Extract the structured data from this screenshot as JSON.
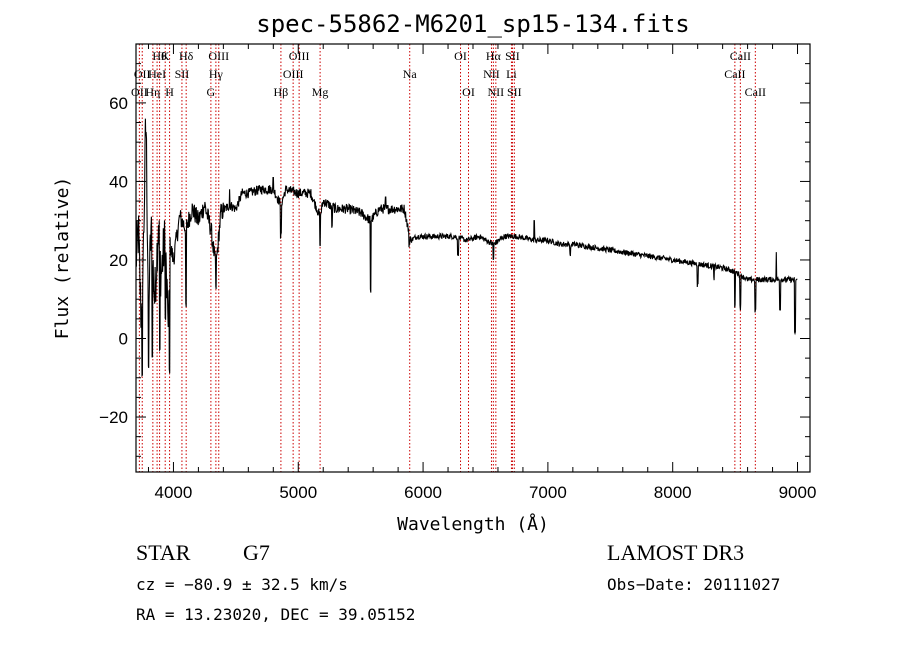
{
  "chart_data": {
    "type": "line",
    "title": "spec-55862-M6201_sp15-134.fits",
    "xlabel": "Wavelength (Å)",
    "ylabel": "Flux (relative)",
    "xlim": [
      3700,
      9100
    ],
    "ylim": [
      -34,
      75
    ],
    "xticks": [
      4000,
      5000,
      6000,
      7000,
      8000,
      9000
    ],
    "yticks": [
      -20,
      0,
      20,
      40,
      60
    ],
    "spectrum_anchors": [
      [
        3700,
        20
      ],
      [
        3720,
        27
      ],
      [
        3740,
        6
      ],
      [
        3760,
        24
      ],
      [
        3780,
        56
      ],
      [
        3800,
        8
      ],
      [
        3820,
        28
      ],
      [
        3850,
        10
      ],
      [
        3880,
        30
      ],
      [
        3900,
        16
      ],
      [
        3930,
        25
      ],
      [
        3960,
        3
      ],
      [
        3970,
        24
      ],
      [
        4000,
        20
      ],
      [
        4050,
        31
      ],
      [
        4100,
        28
      ],
      [
        4150,
        33
      ],
      [
        4200,
        30
      ],
      [
        4250,
        34
      ],
      [
        4300,
        28
      ],
      [
        4340,
        18
      ],
      [
        4380,
        32
      ],
      [
        4450,
        34
      ],
      [
        4500,
        33
      ],
      [
        4550,
        37
      ],
      [
        4600,
        37
      ],
      [
        4700,
        38
      ],
      [
        4800,
        38
      ],
      [
        4861,
        34
      ],
      [
        4900,
        38
      ],
      [
        5000,
        37
      ],
      [
        5100,
        37
      ],
      [
        5175,
        31
      ],
      [
        5200,
        35
      ],
      [
        5300,
        33
      ],
      [
        5400,
        33
      ],
      [
        5500,
        32
      ],
      [
        5580,
        30
      ],
      [
        5650,
        33
      ],
      [
        5750,
        33
      ],
      [
        5850,
        33
      ],
      [
        5900,
        25
      ],
      [
        5950,
        26
      ],
      [
        6050,
        26
      ],
      [
        6150,
        26
      ],
      [
        6250,
        26
      ],
      [
        6350,
        25
      ],
      [
        6450,
        26
      ],
      [
        6563,
        24
      ],
      [
        6650,
        26
      ],
      [
        6750,
        26
      ],
      [
        6900,
        25
      ],
      [
        7000,
        25
      ],
      [
        7100,
        24
      ],
      [
        7200,
        24
      ],
      [
        7400,
        23
      ],
      [
        7600,
        22
      ],
      [
        7800,
        21
      ],
      [
        8000,
        20
      ],
      [
        8200,
        19
      ],
      [
        8400,
        18
      ],
      [
        8500,
        17
      ],
      [
        8600,
        15
      ],
      [
        8700,
        15
      ],
      [
        8800,
        15
      ],
      [
        8900,
        15
      ],
      [
        9000,
        15
      ]
    ],
    "absorption_features": [
      [
        3750,
        -10
      ],
      [
        3800,
        -8
      ],
      [
        3830,
        -5
      ],
      [
        3890,
        -3
      ],
      [
        3935,
        5
      ],
      [
        3968,
        -8
      ],
      [
        4101,
        8
      ],
      [
        4340,
        13
      ],
      [
        4861,
        26
      ],
      [
        5175,
        23
      ],
      [
        5270,
        28
      ],
      [
        5580,
        12
      ],
      [
        5890,
        24
      ],
      [
        6280,
        22
      ],
      [
        6563,
        20
      ],
      [
        7180,
        22
      ],
      [
        7600,
        22
      ],
      [
        8200,
        14
      ],
      [
        8330,
        15
      ],
      [
        8498,
        8
      ],
      [
        8542,
        8
      ],
      [
        8662,
        7
      ],
      [
        8860,
        8
      ],
      [
        8980,
        1
      ]
    ],
    "emission_features": [
      [
        3775,
        56
      ],
      [
        4450,
        38
      ],
      [
        4800,
        41
      ],
      [
        5700,
        36
      ],
      [
        6890,
        30
      ],
      [
        8830,
        22
      ]
    ],
    "line_markers": [
      {
        "wavelength": 3727,
        "label": "OII",
        "row": 2
      },
      {
        "wavelength": 3750,
        "label": "OII",
        "row": 1
      },
      {
        "wavelength": 3835,
        "label": "Hη",
        "row": 2
      },
      {
        "wavelength": 3869,
        "label": "HeI",
        "row": 1
      },
      {
        "wavelength": 3889,
        "label": "Hθ",
        "row": 0
      },
      {
        "wavelength": 3934,
        "label": "K",
        "row": 0
      },
      {
        "wavelength": 3969,
        "label": "H",
        "row": 2
      },
      {
        "wavelength": 4068,
        "label": "SII",
        "row": 1
      },
      {
        "wavelength": 4102,
        "label": "Hδ",
        "row": 0
      },
      {
        "wavelength": 4300,
        "label": "G",
        "row": 2
      },
      {
        "wavelength": 4340,
        "label": "Hγ",
        "row": 1
      },
      {
        "wavelength": 4363,
        "label": "OIII",
        "row": 0
      },
      {
        "wavelength": 4861,
        "label": "Hβ",
        "row": 2
      },
      {
        "wavelength": 4959,
        "label": "OIII",
        "row": 1
      },
      {
        "wavelength": 5007,
        "label": "OIII",
        "row": 0
      },
      {
        "wavelength": 5175,
        "label": "Mg",
        "row": 2
      },
      {
        "wavelength": 5893,
        "label": "Na",
        "row": 1
      },
      {
        "wavelength": 6300,
        "label": "OI",
        "row": 0
      },
      {
        "wavelength": 6364,
        "label": "OI",
        "row": 2
      },
      {
        "wavelength": 6548,
        "label": "NII",
        "row": 1
      },
      {
        "wavelength": 6563,
        "label": "Hα",
        "row": 0
      },
      {
        "wavelength": 6583,
        "label": "NII",
        "row": 2
      },
      {
        "wavelength": 6708,
        "label": "Li",
        "row": 1
      },
      {
        "wavelength": 6716,
        "label": "SII",
        "row": 0
      },
      {
        "wavelength": 6731,
        "label": "SII",
        "row": 2
      },
      {
        "wavelength": 8498,
        "label": "CaII",
        "row": 1
      },
      {
        "wavelength": 8542,
        "label": "CaII",
        "row": 0
      },
      {
        "wavelength": 8662,
        "label": "CaII",
        "row": 2
      }
    ]
  },
  "info": {
    "class": "STAR",
    "subclass": "G7",
    "survey": "LAMOST DR3",
    "cz": "cz = −80.9 ± 32.5 km/s",
    "obs_date": "Obs−Date: 20111027",
    "radec": "RA =  13.23020, DEC =  39.05152"
  },
  "colors": {
    "spectrum": "#000000",
    "marker": "#cc0000"
  }
}
